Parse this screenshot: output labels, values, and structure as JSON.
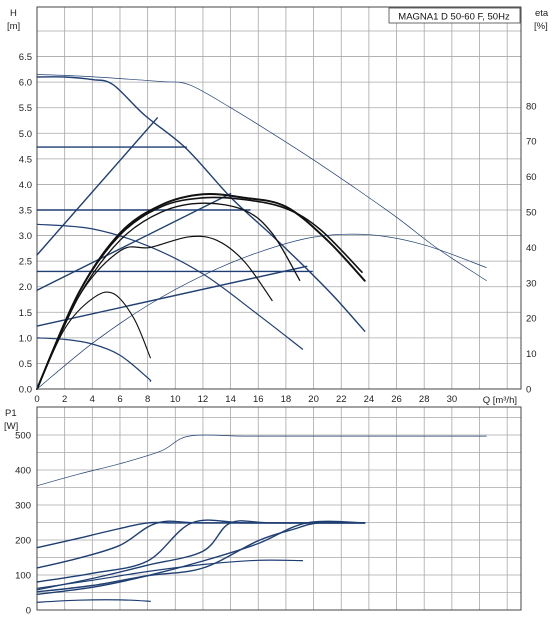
{
  "chart_data": [
    {
      "type": "line",
      "title": "MAGNA1 D 50-60 F, 50Hz",
      "ylabel": "H",
      "yunit": "[m]",
      "y2label": "eta",
      "y2unit": "[%]",
      "xlabel": "Q [m³/h]",
      "xlim": [
        0,
        35
      ],
      "ylim": [
        0,
        7
      ],
      "y2lim": [
        0,
        100
      ],
      "xticks": [
        "0",
        "2",
        "4",
        "6",
        "8",
        "10",
        "12",
        "14",
        "16",
        "18",
        "20",
        "22",
        "24",
        "26",
        "28",
        "30"
      ],
      "yticks": [
        "0.0",
        "0.5",
        "1.0",
        "1.5",
        "2.0",
        "2.5",
        "3.0",
        "3.5",
        "4.0",
        "4.5",
        "5.0",
        "5.5",
        "6.0",
        "6.5"
      ],
      "y2ticks": [
        "0",
        "10",
        "20",
        "30",
        "40",
        "50",
        "60",
        "70",
        "80"
      ],
      "grid": true,
      "series": [
        {
          "kind": "max-curve-twin-head",
          "axis": "H",
          "color": "#1f3f73",
          "width": 0.7,
          "x": [
            0,
            3,
            6,
            9,
            11,
            14,
            17,
            20,
            23,
            26,
            29,
            32.5
          ],
          "y": [
            6.15,
            6.12,
            6.07,
            6.01,
            5.95,
            5.5,
            5.0,
            4.48,
            3.93,
            3.36,
            2.74,
            2.12
          ]
        },
        {
          "kind": "eta-twin-head",
          "axis": "eta",
          "color": "#1f3f73",
          "width": 0.7,
          "x": [
            0,
            4,
            8,
            12,
            16,
            20,
            24,
            28,
            32.5
          ],
          "y": [
            0,
            12.9,
            23.6,
            32.1,
            38.6,
            42.9,
            43.6,
            40.7,
            34.3
          ]
        },
        {
          "kind": "max-curve",
          "axis": "H",
          "color": "#1f3f73",
          "width": 1.4,
          "x": [
            0,
            2,
            4,
            5.5,
            7.8,
            10.8,
            14,
            17,
            19.5,
            21.5,
            23.7
          ],
          "y": [
            6.1,
            6.1,
            6.05,
            5.95,
            5.35,
            4.7,
            3.75,
            3.0,
            2.35,
            1.8,
            1.13
          ]
        },
        {
          "kind": "proportional-line",
          "axis": "H",
          "color": "#1f3f73",
          "width": 1.4,
          "x": [
            0,
            8.7
          ],
          "y": [
            2.62,
            5.3
          ]
        },
        {
          "kind": "proportional-line",
          "axis": "H",
          "color": "#1f3f73",
          "width": 1.4,
          "x": [
            0,
            14
          ],
          "y": [
            1.93,
            3.82
          ]
        },
        {
          "kind": "proportional-line",
          "axis": "H",
          "color": "#1f3f73",
          "width": 1.4,
          "x": [
            0,
            19.5
          ],
          "y": [
            1.23,
            2.4
          ]
        },
        {
          "kind": "constant-pressure",
          "axis": "H",
          "color": "#1f3f73",
          "width": 1.4,
          "x": [
            0,
            10.8
          ],
          "y": [
            4.73,
            4.73
          ]
        },
        {
          "kind": "constant-pressure",
          "axis": "H",
          "color": "#1f3f73",
          "width": 1.4,
          "x": [
            0,
            15.4
          ],
          "y": [
            3.5,
            3.5
          ]
        },
        {
          "kind": "constant-pressure",
          "axis": "H",
          "color": "#1f3f73",
          "width": 1.4,
          "x": [
            0,
            19.9
          ],
          "y": [
            2.3,
            2.3
          ]
        },
        {
          "kind": "constant-curve",
          "axis": "H",
          "color": "#1f3f73",
          "width": 1.2,
          "x": [
            0,
            4,
            8,
            12,
            16,
            19.2
          ],
          "y": [
            3.22,
            3.13,
            2.8,
            2.25,
            1.45,
            0.78
          ]
        },
        {
          "kind": "constant-curve",
          "axis": "H",
          "color": "#1f3f73",
          "width": 1.2,
          "x": [
            0,
            2,
            4,
            6,
            8,
            8.2
          ],
          "y": [
            1.0,
            0.97,
            0.88,
            0.66,
            0.22,
            0.15
          ]
        },
        {
          "kind": "eta",
          "axis": "eta",
          "color": "#111111",
          "width": 2.0,
          "x": [
            0,
            3,
            6,
            9,
            12,
            15,
            18,
            21,
            23.7
          ],
          "y": [
            0,
            27,
            44,
            52,
            55,
            54,
            51.5,
            42,
            30.6
          ]
        },
        {
          "kind": "eta",
          "axis": "eta",
          "color": "#111111",
          "width": 1.6,
          "x": [
            0,
            3,
            6,
            9,
            12,
            15,
            18,
            20.5,
            23.5
          ],
          "y": [
            0,
            27,
            43.5,
            51.5,
            54,
            53.5,
            51,
            45,
            33
          ]
        },
        {
          "kind": "eta",
          "axis": "eta",
          "color": "#111111",
          "width": 1.3,
          "x": [
            0,
            3,
            6,
            9,
            12,
            15,
            17,
            19
          ],
          "y": [
            0,
            26,
            42,
            50,
            52.5,
            50.5,
            44,
            30.7
          ]
        },
        {
          "kind": "eta",
          "axis": "eta",
          "color": "#111111",
          "width": 1.2,
          "x": [
            0,
            3,
            6,
            8.2,
            11,
            13,
            15,
            17
          ],
          "y": [
            0,
            26,
            39,
            40,
            43,
            42,
            36,
            25
          ]
        },
        {
          "kind": "eta",
          "axis": "eta",
          "color": "#111111",
          "width": 1.1,
          "x": [
            0,
            2,
            4,
            5.5,
            7,
            8.2
          ],
          "y": [
            0,
            17,
            25.5,
            27,
            20,
            8.8
          ]
        }
      ]
    },
    {
      "type": "line",
      "ylabel": "P1",
      "yunit": "[W]",
      "xlim": [
        0,
        35
      ],
      "ylim": [
        0,
        580
      ],
      "yticks": [
        "0",
        "100",
        "200",
        "300",
        "400",
        "500"
      ],
      "grid": true,
      "series": [
        {
          "kind": "p1-twin-head",
          "color": "#1f3f73",
          "width": 0.7,
          "x": [
            0,
            3,
            6,
            9,
            11,
            15,
            20,
            25,
            32.5
          ],
          "y": [
            355,
            388,
            418,
            455,
            497,
            497,
            497,
            497,
            497
          ]
        },
        {
          "kind": "p1-max",
          "color": "#1f3f73",
          "width": 1.4,
          "x": [
            0,
            3,
            6,
            8,
            10,
            14,
            20,
            23.7
          ],
          "y": [
            178,
            205,
            233,
            249,
            249,
            249,
            249,
            249
          ]
        },
        {
          "kind": "p1",
          "color": "#1f3f73",
          "width": 1.4,
          "x": [
            0,
            3,
            6,
            8.7,
            12,
            20,
            23.7
          ],
          "y": [
            120,
            148,
            185,
            249,
            249,
            249,
            249
          ]
        },
        {
          "kind": "p1",
          "color": "#1f3f73",
          "width": 1.4,
          "x": [
            0,
            4,
            8,
            11.2,
            15,
            20,
            23.7
          ],
          "y": [
            80,
            105,
            140,
            249,
            249,
            249,
            249
          ]
        },
        {
          "kind": "p1",
          "color": "#1f3f73",
          "width": 1.4,
          "x": [
            0,
            4,
            8,
            12,
            14,
            17,
            23.7
          ],
          "y": [
            58,
            90,
            128,
            168,
            249,
            249,
            249
          ]
        },
        {
          "kind": "p1",
          "color": "#1f3f73",
          "width": 1.4,
          "x": [
            0,
            4,
            8,
            12,
            16,
            19.5,
            23.7
          ],
          "y": [
            45,
            65,
            98,
            140,
            190,
            249,
            249
          ]
        },
        {
          "kind": "p1",
          "color": "#1f3f73",
          "width": 1.4,
          "x": [
            0,
            4,
            8,
            12,
            16,
            18.5,
            20.4,
            23.7
          ],
          "y": [
            52,
            70,
            98,
            120,
            198,
            230,
            249,
            249
          ]
        },
        {
          "kind": "p1",
          "color": "#1f3f73",
          "width": 1.2,
          "x": [
            0,
            4,
            8,
            12,
            16,
            19.2
          ],
          "y": [
            62,
            85,
            110,
            130,
            142,
            141
          ]
        },
        {
          "kind": "p1",
          "color": "#1f3f73",
          "width": 1.2,
          "x": [
            0,
            3,
            6,
            8.2
          ],
          "y": [
            22,
            28,
            29,
            25
          ]
        }
      ]
    }
  ]
}
